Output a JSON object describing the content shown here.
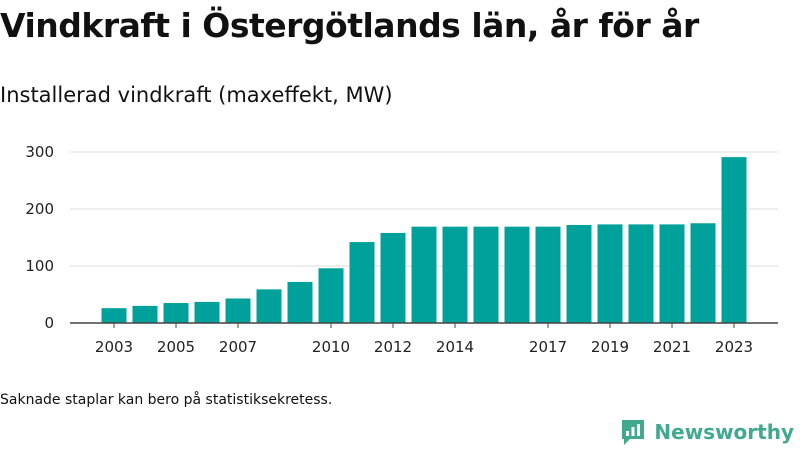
{
  "header": {
    "title": "Vindkraft i Östergötlands län, år för år",
    "subtitle": "Installerad vindkraft (maxeffekt, MW)"
  },
  "footnote": "Saknade staplar kan bero på statistiksekretess.",
  "brand": {
    "name": "Newsworthy",
    "icon": "newsworthy-logo-icon",
    "color": "#41a990"
  },
  "colors": {
    "bar": "#00a19a",
    "grid": "#dcdcdc",
    "axis": "#444444"
  },
  "chart_data": {
    "type": "bar",
    "title": "Installerad vindkraft (maxeffekt, MW)",
    "categories": [
      "2003",
      "2004",
      "2005",
      "2006",
      "2007",
      "2008",
      "2009",
      "2010",
      "2011",
      "2012",
      "2013",
      "2014",
      "2015",
      "2016",
      "2017",
      "2018",
      "2019",
      "2020",
      "2021",
      "2022",
      "2023"
    ],
    "values": [
      26,
      30,
      35,
      37,
      43,
      59,
      72,
      96,
      142,
      158,
      169,
      169,
      169,
      169,
      169,
      172,
      173,
      173,
      173,
      175,
      291
    ],
    "tick_labels_x": [
      "2003",
      "2005",
      "2007",
      "2010",
      "2012",
      "2014",
      "2017",
      "2019",
      "2021",
      "2023"
    ],
    "yticks": [
      0,
      100,
      200,
      300
    ],
    "ylim": [
      0,
      320
    ],
    "xlabel": "",
    "ylabel": "",
    "grid": true,
    "legend": "none"
  }
}
